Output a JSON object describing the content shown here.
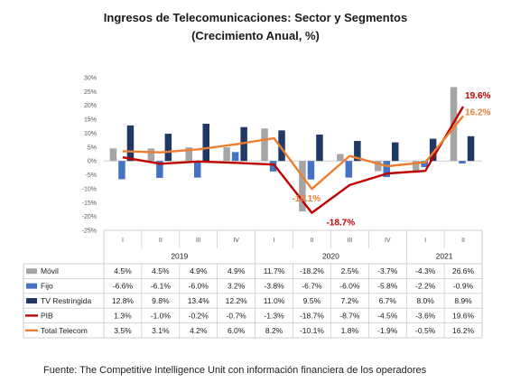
{
  "title_line1": "Ingresos de Telecomunicaciones: Sector y Segmentos",
  "title_line2": "(Crecimiento Anual, %)",
  "source": "Fuente: The Competitive Intelligence Unit con información financiera de los operadores",
  "chart_data": {
    "type": "bar",
    "title": "Ingresos de Telecomunicaciones: Sector y Segmentos (Crecimiento Anual, %)",
    "xlabel": "",
    "ylabel": "",
    "ylim": [
      -25,
      30
    ],
    "yticks": [
      "30%",
      "25%",
      "20%",
      "15%",
      "10%",
      "5%",
      "0%",
      "-5%",
      "-10%",
      "-15%",
      "-20%",
      "-25%"
    ],
    "quarters": [
      "I",
      "II",
      "III",
      "IV",
      "I",
      "II",
      "III",
      "IV",
      "I",
      "II"
    ],
    "years": [
      {
        "label": "2019",
        "span": 4
      },
      {
        "label": "2020",
        "span": 4
      },
      {
        "label": "2021",
        "span": 2
      }
    ],
    "grid": false,
    "legend": "table-left",
    "series": [
      {
        "name": "Móvil",
        "kind": "bar",
        "color": "#a5a5a5",
        "values": [
          4.5,
          4.5,
          4.9,
          4.9,
          11.7,
          -18.2,
          2.5,
          -3.7,
          -4.3,
          26.6
        ],
        "labels": [
          "4.5%",
          "4.5%",
          "4.9%",
          "4.9%",
          "11.7%",
          "-18.2%",
          "2.5%",
          "-3.7%",
          "-4.3%",
          "26.6%"
        ]
      },
      {
        "name": "Fijo",
        "kind": "bar",
        "color": "#4472c4",
        "values": [
          -6.6,
          -6.1,
          -6.0,
          3.2,
          -3.8,
          -6.7,
          -6.0,
          -5.8,
          -2.2,
          -0.9
        ],
        "labels": [
          "-6.6%",
          "-6.1%",
          "-6.0%",
          "3.2%",
          "-3.8%",
          "-6.7%",
          "-6.0%",
          "-5.8%",
          "-2.2%",
          "-0.9%"
        ]
      },
      {
        "name": "TV Restringida",
        "kind": "bar",
        "color": "#1f3864",
        "values": [
          12.8,
          9.8,
          13.4,
          12.2,
          11.0,
          9.5,
          7.2,
          6.7,
          8.0,
          8.9
        ],
        "labels": [
          "12.8%",
          "9.8%",
          "13.4%",
          "12.2%",
          "11.0%",
          "9.5%",
          "7.2%",
          "6.7%",
          "8.0%",
          "8.9%"
        ]
      },
      {
        "name": "PIB",
        "kind": "line",
        "color": "#c00000",
        "values": [
          1.3,
          -1.0,
          -0.2,
          -0.7,
          -1.3,
          -18.7,
          -8.7,
          -4.5,
          -3.6,
          19.6
        ],
        "labels": [
          "1.3%",
          "-1.0%",
          "-0.2%",
          "-0.7%",
          "-1.3%",
          "-18.7%",
          "-8.7%",
          "-4.5%",
          "-3.6%",
          "19.6%"
        ]
      },
      {
        "name": "Total Telecom",
        "kind": "line",
        "color": "#ed7d31",
        "values": [
          3.5,
          3.1,
          4.2,
          6.0,
          8.2,
          -10.1,
          1.8,
          -1.9,
          -0.5,
          16.2
        ],
        "labels": [
          "3.5%",
          "3.1%",
          "4.2%",
          "6.0%",
          "8.2%",
          "-10.1%",
          "1.8%",
          "-1.9%",
          "-0.5%",
          "16.2%"
        ]
      }
    ],
    "annotations": [
      {
        "series": "PIB",
        "index": 5,
        "text": "-18.7%"
      },
      {
        "series": "PIB",
        "index": 9,
        "text": "19.6%"
      },
      {
        "series": "Total Telecom",
        "index": 5,
        "text": "-10.1%"
      },
      {
        "series": "Total Telecom",
        "index": 9,
        "text": "16.2%"
      }
    ]
  }
}
